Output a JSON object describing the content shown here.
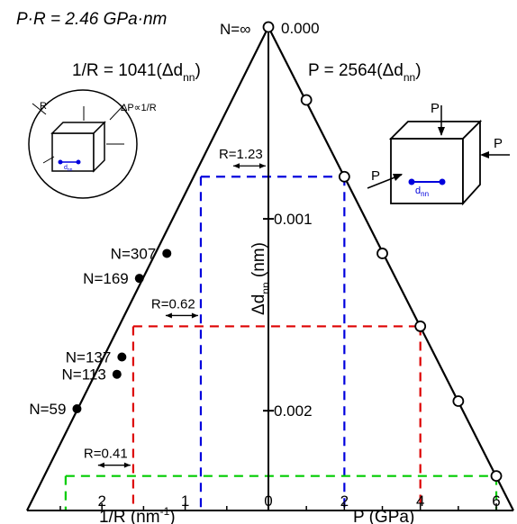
{
  "chart_data": {
    "type": "scatter",
    "title": "P·R = 2.46 GPa·nm",
    "left_axis": {
      "xlabel": "1/R (nm",
      "xlabel_sup": "-1",
      "xlabel_end": ")",
      "ticks": [
        "2",
        "1"
      ],
      "tick_values": [
        2,
        1
      ],
      "xlim": [
        2.9,
        0
      ]
    },
    "right_axis": {
      "xlabel": "P (GPa)",
      "ticks": [
        "0",
        "2",
        "4",
        "6"
      ],
      "tick_values": [
        0,
        2,
        4,
        6
      ],
      "xlim": [
        0,
        6.45
      ]
    },
    "center_axis": {
      "ylabel": "Δd",
      "ylabel_sub": "nn",
      "ylabel_unit": " (nm)",
      "ticks": [
        "0.000",
        "0.001",
        "0.002"
      ],
      "tick_values": [
        0.0,
        0.001,
        0.002
      ],
      "ylim": [
        0,
        0.00252
      ]
    },
    "left_fit": {
      "label": "1/R = 1041(Δd",
      "sub": "nn",
      "end": ")",
      "slope": 1041
    },
    "right_fit": {
      "label": "P = 2564(Δd",
      "sub": "nn",
      "end": ")",
      "slope": 2564
    },
    "series": [
      {
        "side": "left",
        "marker": "filled circle",
        "points": [
          {
            "label": "N=∞",
            "x": 0.0,
            "y": 0.0
          },
          {
            "label": "N=307",
            "x": 1.22,
            "y": 0.00118
          },
          {
            "label": "N=169",
            "x": 1.55,
            "y": 0.00131
          },
          {
            "label": "N=137",
            "x": 1.76,
            "y": 0.00172
          },
          {
            "label": "N=113",
            "x": 1.82,
            "y": 0.00181
          },
          {
            "label": "N=59",
            "x": 2.3,
            "y": 0.00199
          }
        ]
      },
      {
        "side": "right",
        "marker": "open circle",
        "points": [
          {
            "x": 0.0,
            "y": 0.0
          },
          {
            "x": 1.0,
            "y": 0.00038
          },
          {
            "x": 2.0,
            "y": 0.00078
          },
          {
            "x": 3.0,
            "y": 0.00118
          },
          {
            "x": 4.0,
            "y": 0.00156
          },
          {
            "x": 5.0,
            "y": 0.00195
          },
          {
            "x": 6.0,
            "y": 0.00234
          }
        ]
      }
    ],
    "guides": [
      {
        "color": "#0000dd",
        "p": 2.0,
        "r_label": "R=1.23"
      },
      {
        "color": "#dd0000",
        "p": 4.0,
        "r_label": "R=0.62"
      },
      {
        "color": "#00cc00",
        "p": 6.0,
        "r_label": "R=0.41"
      }
    ],
    "inset_sphere": {
      "r_label": "R",
      "dp_label": "ΔP∝1/R",
      "dnn": "d",
      "dnn_sub": "nn"
    },
    "inset_cube": {
      "p_label": "P",
      "dnn": "d",
      "dnn_sub": "nn"
    },
    "grid": false,
    "legend": "none",
    "colors": {
      "blue": "#0000dd",
      "red": "#dd0000",
      "green": "#00cc00",
      "ink": "#000000"
    }
  }
}
